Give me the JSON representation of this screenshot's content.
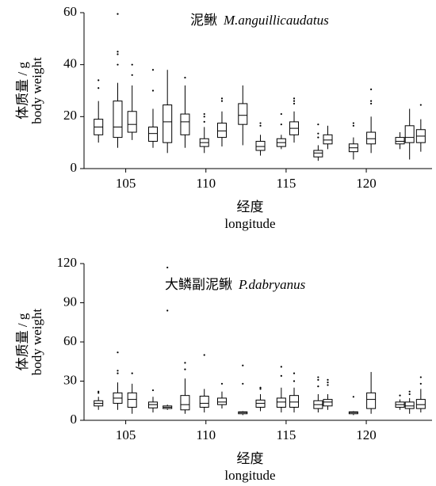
{
  "chart_data": [
    {
      "type": "box",
      "title": "泥鳅",
      "title_latin": "M.anguillicaudatus",
      "ylabel": [
        "体质量 / g",
        "body weight"
      ],
      "xlabel": [
        "经度",
        "longitude"
      ],
      "xlim": [
        102.4,
        124.1
      ],
      "xticks": [
        105,
        110,
        115,
        120
      ],
      "ylim": [
        0,
        60
      ],
      "yticks": [
        0,
        20,
        40,
        60
      ],
      "color": "#000000",
      "boxes": [
        {
          "x": 103.3,
          "low": 10,
          "q1": 13,
          "median": 16,
          "q3": 19,
          "high": 26,
          "outliers": [
            31,
            34
          ]
        },
        {
          "x": 104.5,
          "low": 8,
          "q1": 12,
          "median": 16,
          "q3": 26,
          "high": 33,
          "outliers": [
            40,
            44,
            45,
            59.5
          ]
        },
        {
          "x": 105.4,
          "low": 11,
          "q1": 14,
          "median": 17,
          "q3": 22,
          "high": 32,
          "outliers": [
            36,
            40
          ]
        },
        {
          "x": 106.7,
          "low": 8,
          "q1": 10.5,
          "median": 13.5,
          "q3": 16,
          "high": 23,
          "outliers": [
            30,
            38
          ]
        },
        {
          "x": 107.6,
          "low": 6,
          "q1": 10,
          "median": 18,
          "q3": 24.5,
          "high": 38,
          "outliers": []
        },
        {
          "x": 108.7,
          "low": 8,
          "q1": 13,
          "median": 18,
          "q3": 21,
          "high": 32,
          "outliers": [
            35
          ]
        },
        {
          "x": 109.9,
          "low": 6,
          "q1": 8.5,
          "median": 10,
          "q3": 11.5,
          "high": 16,
          "outliers": [
            18,
            20,
            21
          ]
        },
        {
          "x": 111.0,
          "low": 8.5,
          "q1": 12,
          "median": 14.5,
          "q3": 17.5,
          "high": 22,
          "outliers": [
            26,
            27
          ]
        },
        {
          "x": 112.3,
          "low": 9,
          "q1": 17,
          "median": 20.5,
          "q3": 25,
          "high": 32,
          "outliers": []
        },
        {
          "x": 113.4,
          "low": 5,
          "q1": 7,
          "median": 8.5,
          "q3": 10.5,
          "high": 13,
          "outliers": [
            16.5,
            17.5
          ]
        },
        {
          "x": 114.7,
          "low": 7.5,
          "q1": 8.5,
          "median": 10,
          "q3": 11.5,
          "high": 13,
          "outliers": [
            17,
            21
          ]
        },
        {
          "x": 115.5,
          "low": 10,
          "q1": 13,
          "median": 15.5,
          "q3": 18,
          "high": 22,
          "outliers": [
            25,
            26,
            27
          ]
        },
        {
          "x": 117.0,
          "low": 3,
          "q1": 4.5,
          "median": 6,
          "q3": 7,
          "high": 9,
          "outliers": [
            12,
            13.5,
            17
          ]
        },
        {
          "x": 117.6,
          "low": 7.5,
          "q1": 9.5,
          "median": 11,
          "q3": 13,
          "high": 16.5,
          "outliers": []
        },
        {
          "x": 119.2,
          "low": 3.5,
          "q1": 6.5,
          "median": 8,
          "q3": 9.5,
          "high": 12,
          "outliers": [
            16.5,
            17.5
          ]
        },
        {
          "x": 120.3,
          "low": 6,
          "q1": 9.5,
          "median": 11.5,
          "q3": 14,
          "high": 20,
          "outliers": [
            25,
            26,
            30.5
          ]
        },
        {
          "x": 122.1,
          "low": 7.5,
          "q1": 9.5,
          "median": 10.5,
          "q3": 12,
          "high": 14,
          "outliers": []
        },
        {
          "x": 122.7,
          "low": 3.5,
          "q1": 10,
          "median": 12,
          "q3": 16.5,
          "high": 23,
          "outliers": []
        },
        {
          "x": 123.4,
          "low": 6.5,
          "q1": 10,
          "median": 12.5,
          "q3": 15,
          "high": 19,
          "outliers": [
            24.5
          ]
        }
      ]
    },
    {
      "type": "box",
      "title": "大鳞副泥鳅",
      "title_latin": "P.dabryanus",
      "ylabel": [
        "体质量 / g",
        "body weight"
      ],
      "xlabel": [
        "经度",
        "longitude"
      ],
      "xlim": [
        102.4,
        124.1
      ],
      "xticks": [
        105,
        110,
        115,
        120
      ],
      "ylim": [
        0,
        120
      ],
      "yticks": [
        0,
        30,
        60,
        90,
        120
      ],
      "color": "#000000",
      "boxes": [
        {
          "x": 103.3,
          "low": 8,
          "q1": 11,
          "median": 13,
          "q3": 15,
          "high": 18,
          "outliers": [
            21,
            22
          ]
        },
        {
          "x": 104.5,
          "low": 8,
          "q1": 13,
          "median": 17,
          "q3": 21,
          "high": 29,
          "outliers": [
            36,
            38,
            52
          ]
        },
        {
          "x": 105.4,
          "low": 5,
          "q1": 10,
          "median": 16,
          "q3": 21,
          "high": 28,
          "outliers": [
            36
          ]
        },
        {
          "x": 106.7,
          "low": 6,
          "q1": 9.5,
          "median": 12,
          "q3": 14,
          "high": 18,
          "outliers": [
            23
          ]
        },
        {
          "x": 107.6,
          "low": 8,
          "q1": 9,
          "median": 10,
          "q3": 11,
          "high": 12,
          "outliers": [
            84,
            117
          ]
        },
        {
          "x": 108.7,
          "low": 5,
          "q1": 8,
          "median": 12,
          "q3": 19,
          "high": 32,
          "outliers": [
            39,
            44
          ]
        },
        {
          "x": 109.9,
          "low": 6,
          "q1": 10,
          "median": 13,
          "q3": 18.5,
          "high": 24,
          "outliers": [
            50
          ]
        },
        {
          "x": 111.0,
          "low": 9,
          "q1": 12,
          "median": 14,
          "q3": 17,
          "high": 22,
          "outliers": [
            28
          ]
        },
        {
          "x": 112.3,
          "low": 4,
          "q1": 5,
          "median": 6,
          "q3": 6.5,
          "high": 7,
          "outliers": [
            28,
            42
          ]
        },
        {
          "x": 113.4,
          "low": 7,
          "q1": 10,
          "median": 13,
          "q3": 15.5,
          "high": 20,
          "outliers": [
            24,
            25
          ]
        },
        {
          "x": 114.7,
          "low": 6,
          "q1": 10,
          "median": 14,
          "q3": 17,
          "high": 25,
          "outliers": [
            34,
            41
          ]
        },
        {
          "x": 115.5,
          "low": 6,
          "q1": 10,
          "median": 14,
          "q3": 19,
          "high": 25,
          "outliers": [
            30,
            36
          ]
        },
        {
          "x": 117.0,
          "low": 6,
          "q1": 9,
          "median": 12,
          "q3": 15,
          "high": 20,
          "outliers": [
            26,
            31,
            33
          ]
        },
        {
          "x": 117.6,
          "low": 8,
          "q1": 11,
          "median": 14,
          "q3": 16,
          "high": 20,
          "outliers": [
            27,
            29,
            31
          ]
        },
        {
          "x": 119.2,
          "low": 4,
          "q1": 5,
          "median": 6,
          "q3": 6.5,
          "high": 7,
          "outliers": [
            18
          ]
        },
        {
          "x": 120.3,
          "low": 5,
          "q1": 9,
          "median": 16,
          "q3": 21,
          "high": 37,
          "outliers": []
        },
        {
          "x": 122.1,
          "low": 8,
          "q1": 10,
          "median": 12,
          "q3": 14,
          "high": 16,
          "outliers": [
            19
          ]
        },
        {
          "x": 122.7,
          "low": 5,
          "q1": 9,
          "median": 11,
          "q3": 14,
          "high": 17,
          "outliers": [
            20,
            22
          ]
        },
        {
          "x": 123.4,
          "low": 6,
          "q1": 9,
          "median": 12,
          "q3": 16,
          "high": 24,
          "outliers": [
            28,
            33
          ]
        }
      ]
    }
  ]
}
